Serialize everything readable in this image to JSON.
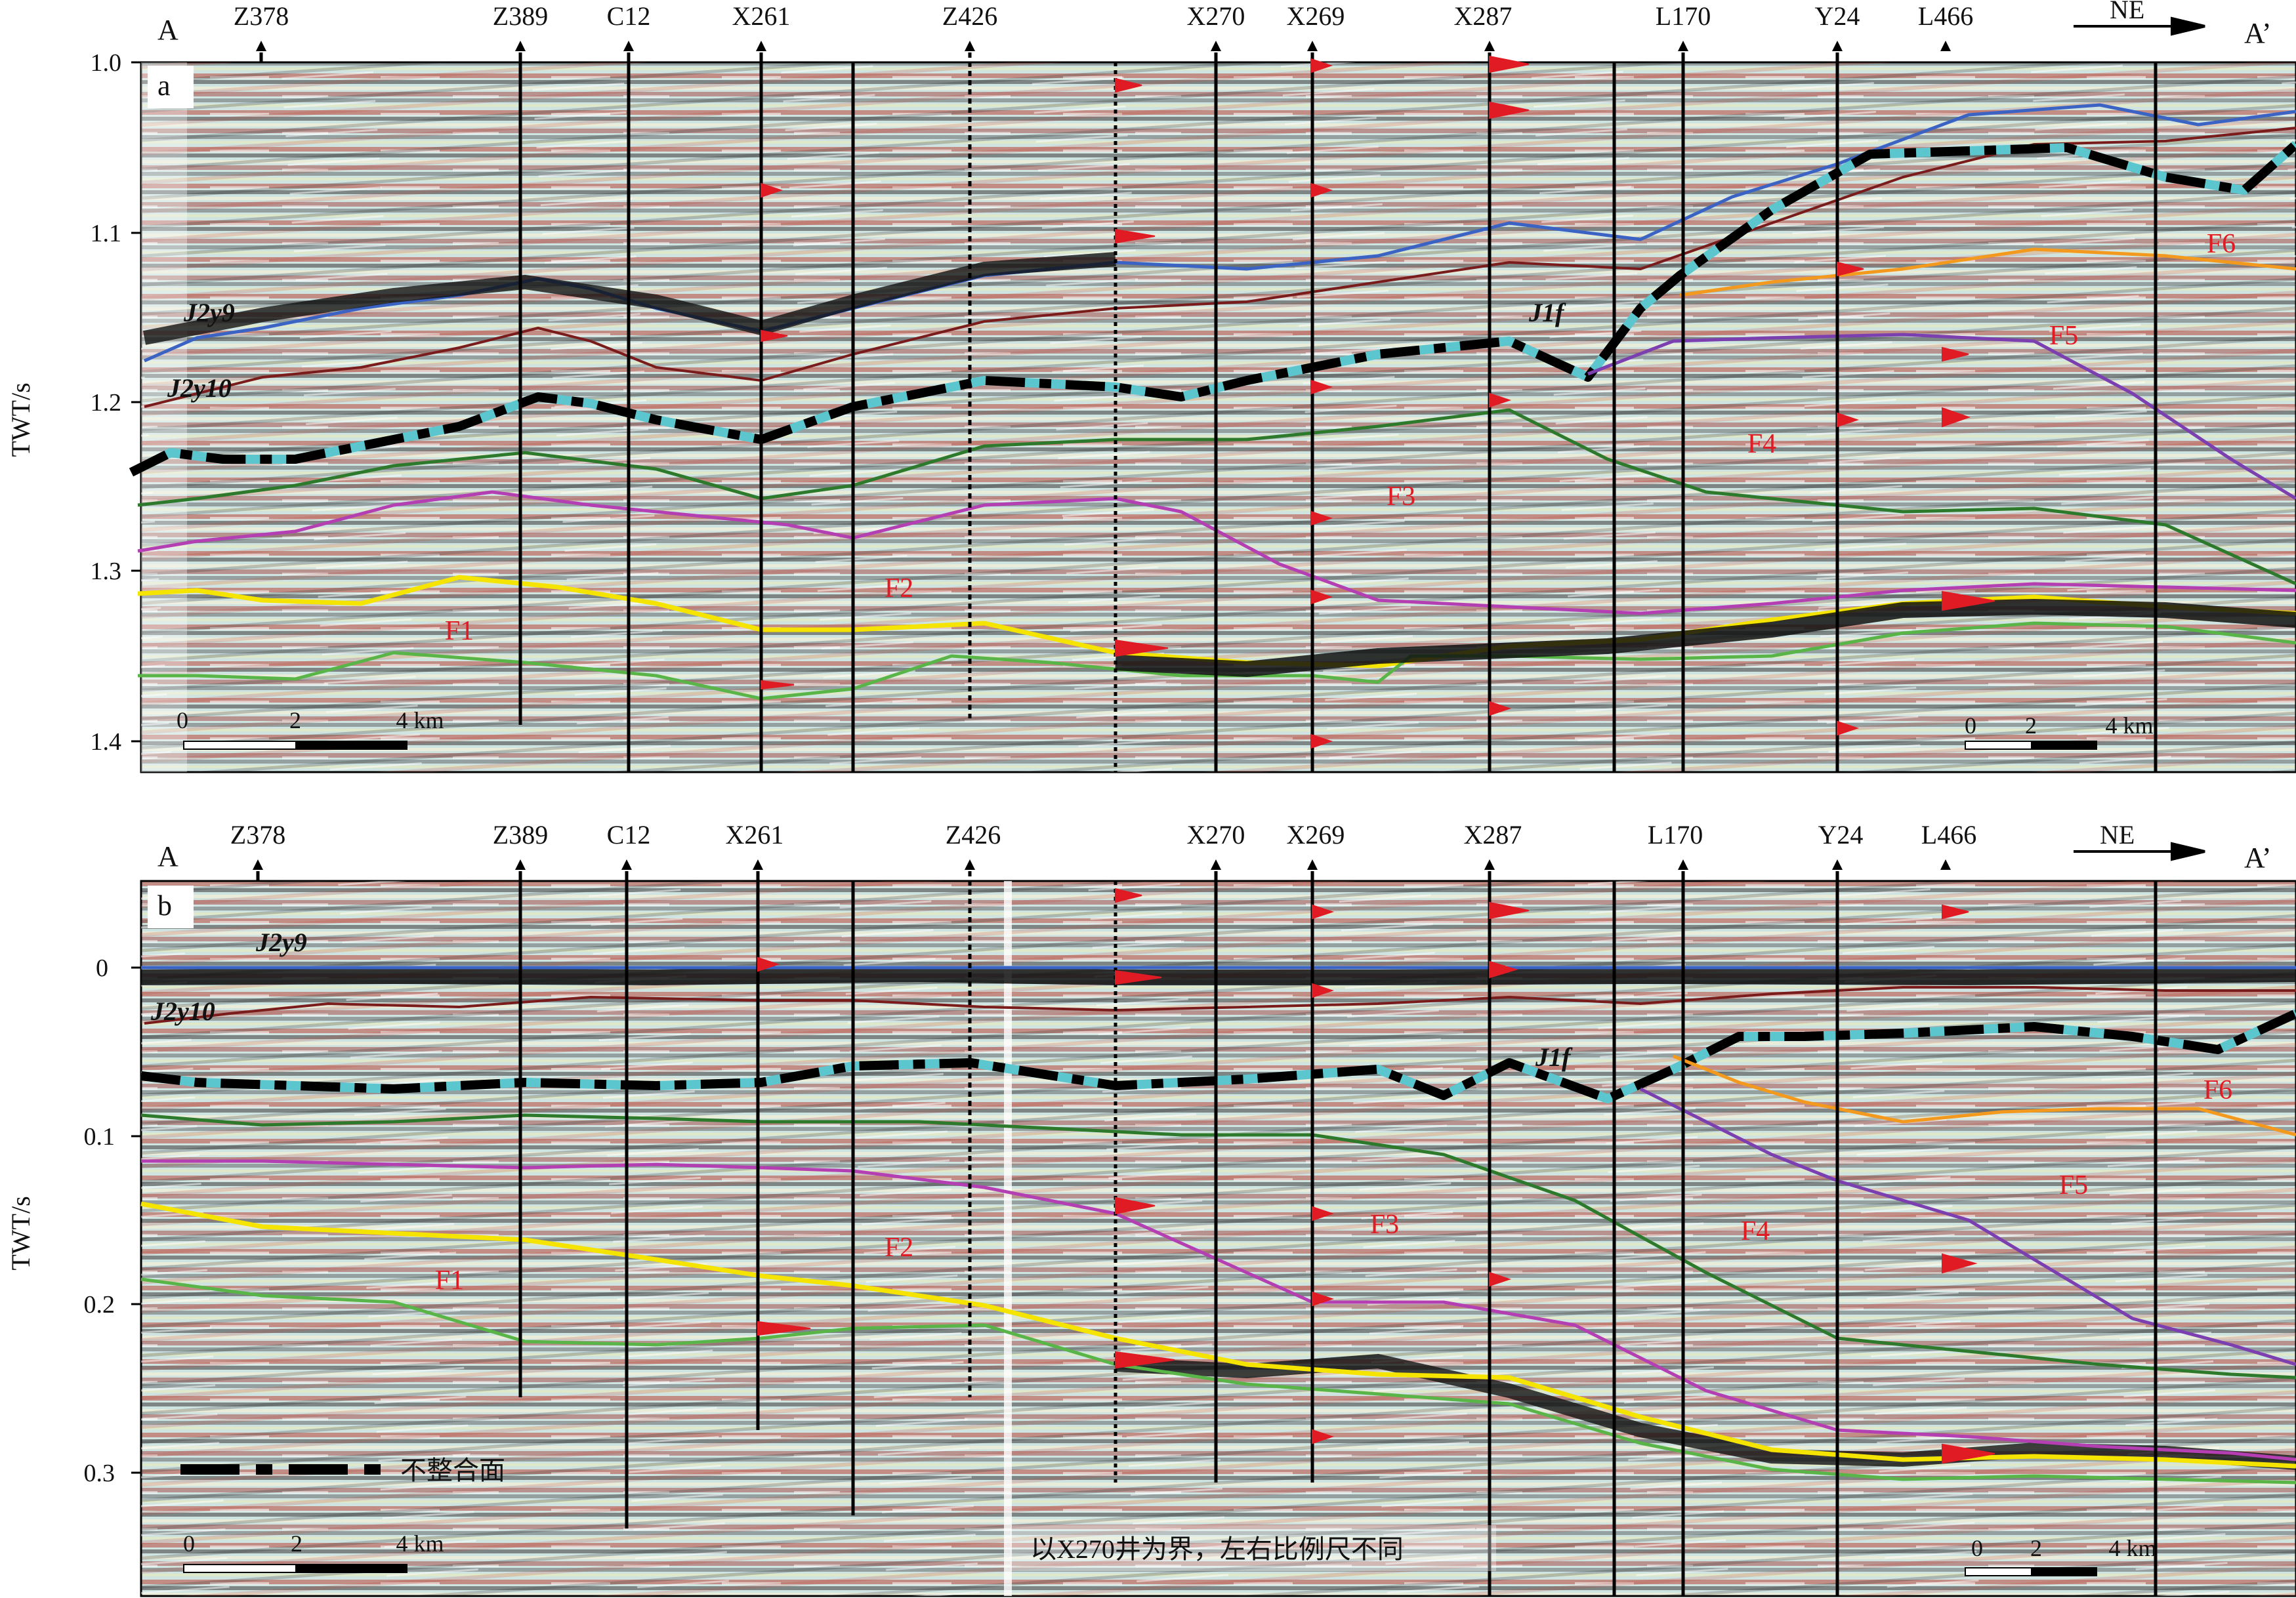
{
  "panels": [
    {
      "id": "a",
      "panel_label": "a",
      "start_label": "A",
      "end_label": "A’",
      "direction_label": "NE",
      "ylabel": "TWT/s",
      "yticks": [
        "1.0",
        "1.1",
        "1.2",
        "1.3",
        "1.4"
      ],
      "wells": [
        "Z378",
        "Z389",
        "C12",
        "X261",
        "Z426",
        "X270",
        "X269",
        "X287",
        "L170",
        "Y24",
        "L466"
      ],
      "formations": [
        "J2y9",
        "J2y10",
        "J1f"
      ],
      "facies": [
        "F1",
        "F2",
        "F3",
        "F4",
        "F5",
        "F6"
      ],
      "scale_bars": [
        {
          "ticks": [
            "0",
            "2",
            "4 km"
          ]
        },
        {
          "ticks": [
            "0",
            "2",
            "4 km"
          ]
        }
      ]
    },
    {
      "id": "b",
      "panel_label": "b",
      "start_label": "A",
      "end_label": "A’",
      "direction_label": "NE",
      "ylabel": "TWT/s",
      "yticks": [
        "0",
        "0.1",
        "0.2",
        "0.3"
      ],
      "wells": [
        "Z378",
        "Z389",
        "C12",
        "X261",
        "Z426",
        "X270",
        "X269",
        "X287",
        "L170",
        "Y24",
        "L466"
      ],
      "formations": [
        "J2y9",
        "J2y10",
        "J1f"
      ],
      "facies": [
        "F1",
        "F2",
        "F3",
        "F4",
        "F5",
        "F6"
      ],
      "scale_bars": [
        {
          "ticks": [
            "0",
            "2",
            "4 km"
          ]
        },
        {
          "ticks": [
            "0",
            "2",
            "4 km"
          ]
        }
      ],
      "legend_label": "不整合面",
      "note": "以X270井为界，左右比例尺不同"
    }
  ],
  "colors": {
    "horizon_blue": "#3b63c4",
    "horizon_brown": "#7a1c1c",
    "unconformity": "#000000",
    "unconformity_halo": "#5cc6cf",
    "dark_green": "#2d7a2d",
    "magenta": "#b33fb3",
    "yellow": "#f4e400",
    "light_green": "#59b548",
    "purple": "#7b3fb0",
    "orange": "#f39a1e",
    "facies_text": "#e01b24"
  }
}
